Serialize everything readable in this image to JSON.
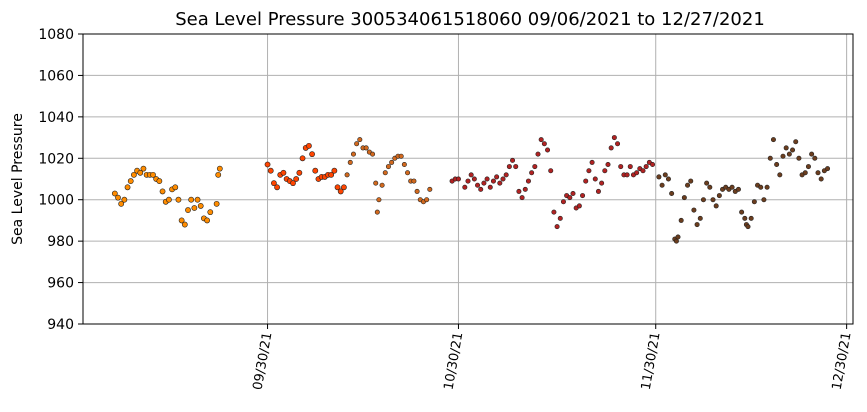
{
  "chart_data": {
    "type": "scatter",
    "title": "Sea Level Pressure 300534061518060  09/06/2021 to 12/27/2021",
    "xlabel": "",
    "ylabel": "Sea Level Pressure",
    "xlim": [
      "2021-09-01",
      "2021-12-31"
    ],
    "ylim": [
      940,
      1080
    ],
    "y_ticks": [
      940,
      960,
      980,
      1000,
      1020,
      1040,
      1060,
      1080
    ],
    "x_ticks": [
      {
        "date": "2021-09-30",
        "label": "09/30/21"
      },
      {
        "date": "2021-10-30",
        "label": "10/30/21"
      },
      {
        "date": "2021-11-30",
        "label": "11/30/21"
      },
      {
        "date": "2021-12-30",
        "label": "12/30/21"
      }
    ],
    "grid": true,
    "legend": "none",
    "series": [
      {
        "color": "#ff8c00",
        "marker_size": "small-dense",
        "points": [
          [
            "2021-09-06T00:00",
            1003
          ],
          [
            "2021-09-06T12:00",
            1001
          ],
          [
            "2021-09-07T00:00",
            998
          ],
          [
            "2021-09-07T12:00",
            1000
          ],
          [
            "2021-09-08T00:00",
            1006
          ],
          [
            "2021-09-08T12:00",
            1009
          ],
          [
            "2021-09-09T00:00",
            1012
          ],
          [
            "2021-09-09T12:00",
            1014
          ],
          [
            "2021-09-10T00:00",
            1013
          ],
          [
            "2021-09-10T12:00",
            1015
          ],
          [
            "2021-09-11T00:00",
            1012
          ],
          [
            "2021-09-11T12:00",
            1012
          ],
          [
            "2021-09-12T00:00",
            1012
          ],
          [
            "2021-09-12T12:00",
            1010
          ],
          [
            "2021-09-13T00:00",
            1009
          ],
          [
            "2021-09-13T12:00",
            1004
          ],
          [
            "2021-09-14T00:00",
            999
          ],
          [
            "2021-09-14T12:00",
            1000
          ],
          [
            "2021-09-15T00:00",
            1005
          ],
          [
            "2021-09-15T12:00",
            1006
          ],
          [
            "2021-09-16T00:00",
            1000
          ],
          [
            "2021-09-16T12:00",
            990
          ],
          [
            "2021-09-17T00:00",
            988
          ],
          [
            "2021-09-17T12:00",
            995
          ],
          [
            "2021-09-18T00:00",
            1000
          ],
          [
            "2021-09-18T12:00",
            996
          ],
          [
            "2021-09-19T00:00",
            1000
          ],
          [
            "2021-09-19T12:00",
            997
          ],
          [
            "2021-09-20T00:00",
            991
          ],
          [
            "2021-09-20T12:00",
            990
          ],
          [
            "2021-09-21T00:00",
            994
          ],
          [
            "2021-09-22T00:00",
            998
          ],
          [
            "2021-09-22T06:00",
            1012
          ],
          [
            "2021-09-22T12:00",
            1015
          ]
        ]
      },
      {
        "color": "#ff4500",
        "marker_size": "small-dense",
        "points": [
          [
            "2021-09-30T00:00",
            1017
          ],
          [
            "2021-09-30T12:00",
            1014
          ],
          [
            "2021-10-01T00:00",
            1008
          ],
          [
            "2021-10-01T12:00",
            1006
          ],
          [
            "2021-10-02T00:00",
            1012
          ],
          [
            "2021-10-02T12:00",
            1013
          ],
          [
            "2021-10-03T00:00",
            1010
          ],
          [
            "2021-10-03T12:00",
            1009
          ],
          [
            "2021-10-04T00:00",
            1008
          ],
          [
            "2021-10-04T12:00",
            1010
          ],
          [
            "2021-10-05T00:00",
            1013
          ],
          [
            "2021-10-05T12:00",
            1020
          ],
          [
            "2021-10-06T00:00",
            1025
          ],
          [
            "2021-10-06T12:00",
            1026
          ],
          [
            "2021-10-07T00:00",
            1022
          ],
          [
            "2021-10-07T12:00",
            1014
          ],
          [
            "2021-10-08T00:00",
            1010
          ],
          [
            "2021-10-08T12:00",
            1011
          ],
          [
            "2021-10-09T00:00",
            1011
          ],
          [
            "2021-10-09T12:00",
            1012
          ],
          [
            "2021-10-10T00:00",
            1012
          ],
          [
            "2021-10-10T12:00",
            1014
          ],
          [
            "2021-10-11T00:00",
            1006
          ],
          [
            "2021-10-11T12:00",
            1004
          ],
          [
            "2021-10-12T00:00",
            1006
          ]
        ]
      },
      {
        "color": "#d2691e",
        "marker_size": "sparse",
        "points": [
          [
            "2021-10-12T12:00",
            1012
          ],
          [
            "2021-10-13T00:00",
            1018
          ],
          [
            "2021-10-13T12:00",
            1022
          ],
          [
            "2021-10-14T00:00",
            1027
          ],
          [
            "2021-10-14T12:00",
            1029
          ],
          [
            "2021-10-15T00:00",
            1025
          ],
          [
            "2021-10-15T12:00",
            1025
          ],
          [
            "2021-10-16T00:00",
            1023
          ],
          [
            "2021-10-16T12:00",
            1022
          ],
          [
            "2021-10-17T00:00",
            1008
          ],
          [
            "2021-10-17T06:00",
            994
          ],
          [
            "2021-10-17T12:00",
            1000
          ],
          [
            "2021-10-18T00:00",
            1007
          ],
          [
            "2021-10-18T12:00",
            1013
          ],
          [
            "2021-10-19T00:00",
            1016
          ],
          [
            "2021-10-19T12:00",
            1018
          ],
          [
            "2021-10-20T00:00",
            1020
          ],
          [
            "2021-10-20T12:00",
            1021
          ],
          [
            "2021-10-21T00:00",
            1021
          ],
          [
            "2021-10-21T12:00",
            1017
          ],
          [
            "2021-10-22T00:00",
            1013
          ],
          [
            "2021-10-22T12:00",
            1009
          ],
          [
            "2021-10-23T00:00",
            1009
          ],
          [
            "2021-10-23T12:00",
            1004
          ],
          [
            "2021-10-24T00:00",
            1000
          ],
          [
            "2021-10-24T12:00",
            999
          ],
          [
            "2021-10-25T00:00",
            1000
          ],
          [
            "2021-10-25T12:00",
            1005
          ]
        ]
      },
      {
        "color": "#b22222",
        "marker_size": "sparse",
        "points": [
          [
            "2021-10-29T00:00",
            1009
          ],
          [
            "2021-10-29T12:00",
            1010
          ],
          [
            "2021-10-30T00:00",
            1010
          ],
          [
            "2021-10-31T00:00",
            1006
          ],
          [
            "2021-10-31T12:00",
            1009
          ],
          [
            "2021-11-01T00:00",
            1012
          ],
          [
            "2021-11-01T12:00",
            1010
          ],
          [
            "2021-11-02T00:00",
            1007
          ],
          [
            "2021-11-02T12:00",
            1005
          ],
          [
            "2021-11-03T00:00",
            1008
          ],
          [
            "2021-11-03T12:00",
            1010
          ],
          [
            "2021-11-04T00:00",
            1006
          ],
          [
            "2021-11-04T12:00",
            1009
          ],
          [
            "2021-11-05T00:00",
            1011
          ],
          [
            "2021-11-05T12:00",
            1008
          ],
          [
            "2021-11-06T00:00",
            1010
          ],
          [
            "2021-11-06T12:00",
            1012
          ],
          [
            "2021-11-07T00:00",
            1016
          ],
          [
            "2021-11-07T12:00",
            1019
          ],
          [
            "2021-11-08T00:00",
            1016
          ],
          [
            "2021-11-08T12:00",
            1004
          ],
          [
            "2021-11-09T00:00",
            1001
          ],
          [
            "2021-11-09T12:00",
            1005
          ],
          [
            "2021-11-10T00:00",
            1009
          ],
          [
            "2021-11-10T12:00",
            1013
          ],
          [
            "2021-11-11T00:00",
            1016
          ],
          [
            "2021-11-11T12:00",
            1022
          ],
          [
            "2021-11-12T00:00",
            1029
          ],
          [
            "2021-11-12T12:00",
            1027
          ],
          [
            "2021-11-13T00:00",
            1024
          ],
          [
            "2021-11-13T12:00",
            1014
          ],
          [
            "2021-11-14T00:00",
            994
          ],
          [
            "2021-11-14T12:00",
            987
          ],
          [
            "2021-11-15T00:00",
            991
          ],
          [
            "2021-11-15T12:00",
            999
          ],
          [
            "2021-11-16T00:00",
            1002
          ],
          [
            "2021-11-16T12:00",
            1001
          ],
          [
            "2021-11-17T00:00",
            1003
          ],
          [
            "2021-11-17T12:00",
            996
          ],
          [
            "2021-11-18T00:00",
            997
          ],
          [
            "2021-11-18T12:00",
            1002
          ],
          [
            "2021-11-19T00:00",
            1009
          ],
          [
            "2021-11-19T12:00",
            1014
          ],
          [
            "2021-11-20T00:00",
            1018
          ],
          [
            "2021-11-20T12:00",
            1010
          ],
          [
            "2021-11-21T00:00",
            1004
          ],
          [
            "2021-11-21T12:00",
            1008
          ],
          [
            "2021-11-22T00:00",
            1014
          ],
          [
            "2021-11-22T12:00",
            1017
          ],
          [
            "2021-11-23T00:00",
            1025
          ],
          [
            "2021-11-23T12:00",
            1030
          ],
          [
            "2021-11-24T00:00",
            1027
          ],
          [
            "2021-11-24T12:00",
            1016
          ],
          [
            "2021-11-25T00:00",
            1012
          ],
          [
            "2021-11-25T12:00",
            1012
          ],
          [
            "2021-11-26T00:00",
            1016
          ],
          [
            "2021-11-26T12:00",
            1012
          ],
          [
            "2021-11-27T00:00",
            1013
          ],
          [
            "2021-11-27T12:00",
            1015
          ],
          [
            "2021-11-28T00:00",
            1014
          ],
          [
            "2021-11-28T12:00",
            1016
          ],
          [
            "2021-11-29T00:00",
            1018
          ],
          [
            "2021-11-29T12:00",
            1017
          ]
        ]
      },
      {
        "color": "#6b3d1e",
        "marker_size": "sparse",
        "points": [
          [
            "2021-11-30T12:00",
            1011
          ],
          [
            "2021-12-01T00:00",
            1007
          ],
          [
            "2021-12-01T12:00",
            1012
          ],
          [
            "2021-12-02T00:00",
            1010
          ],
          [
            "2021-12-02T12:00",
            1003
          ],
          [
            "2021-12-03T00:00",
            981
          ],
          [
            "2021-12-03T06:00",
            980
          ],
          [
            "2021-12-03T12:00",
            982
          ],
          [
            "2021-12-04T00:00",
            990
          ],
          [
            "2021-12-04T12:00",
            1001
          ],
          [
            "2021-12-05T00:00",
            1007
          ],
          [
            "2021-12-05T12:00",
            1009
          ],
          [
            "2021-12-06T00:00",
            995
          ],
          [
            "2021-12-06T12:00",
            988
          ],
          [
            "2021-12-07T00:00",
            991
          ],
          [
            "2021-12-07T12:00",
            1000
          ],
          [
            "2021-12-08T00:00",
            1008
          ],
          [
            "2021-12-08T12:00",
            1006
          ],
          [
            "2021-12-09T00:00",
            1000
          ],
          [
            "2021-12-09T12:00",
            997
          ],
          [
            "2021-12-10T00:00",
            1002
          ],
          [
            "2021-12-10T12:00",
            1005
          ],
          [
            "2021-12-11T00:00",
            1006
          ],
          [
            "2021-12-11T12:00",
            1005
          ],
          [
            "2021-12-12T00:00",
            1006
          ],
          [
            "2021-12-12T12:00",
            1004
          ],
          [
            "2021-12-13T00:00",
            1005
          ],
          [
            "2021-12-13T12:00",
            994
          ],
          [
            "2021-12-14T00:00",
            991
          ],
          [
            "2021-12-14T06:00",
            988
          ],
          [
            "2021-12-14T12:00",
            987
          ],
          [
            "2021-12-15T00:00",
            991
          ],
          [
            "2021-12-15T12:00",
            999
          ],
          [
            "2021-12-16T00:00",
            1007
          ],
          [
            "2021-12-16T12:00",
            1006
          ],
          [
            "2021-12-17T00:00",
            1000
          ],
          [
            "2021-12-17T12:00",
            1006
          ],
          [
            "2021-12-18T00:00",
            1020
          ],
          [
            "2021-12-18T12:00",
            1029
          ],
          [
            "2021-12-19T00:00",
            1017
          ],
          [
            "2021-12-19T12:00",
            1012
          ],
          [
            "2021-12-20T00:00",
            1021
          ],
          [
            "2021-12-20T12:00",
            1025
          ],
          [
            "2021-12-21T00:00",
            1022
          ],
          [
            "2021-12-21T12:00",
            1024
          ],
          [
            "2021-12-22T00:00",
            1028
          ],
          [
            "2021-12-22T12:00",
            1020
          ],
          [
            "2021-12-23T00:00",
            1012
          ],
          [
            "2021-12-23T12:00",
            1013
          ],
          [
            "2021-12-24T00:00",
            1016
          ],
          [
            "2021-12-24T12:00",
            1022
          ],
          [
            "2021-12-25T00:00",
            1020
          ],
          [
            "2021-12-25T12:00",
            1013
          ],
          [
            "2021-12-26T00:00",
            1010
          ],
          [
            "2021-12-26T12:00",
            1014
          ],
          [
            "2021-12-27T00:00",
            1015
          ]
        ]
      }
    ]
  }
}
